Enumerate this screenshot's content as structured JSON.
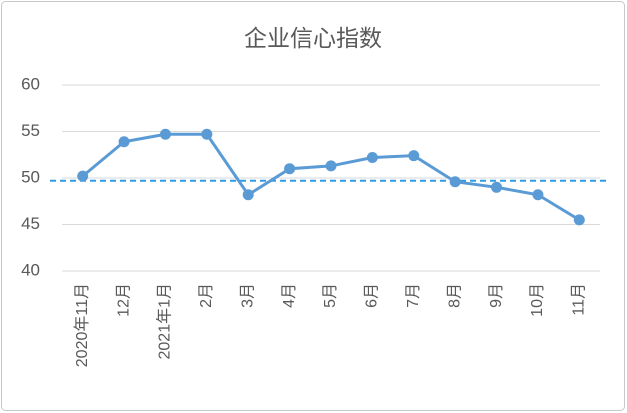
{
  "chart_data": {
    "type": "line",
    "title": "企业信心指数",
    "categories": [
      "2020年11月",
      "12月",
      "2021年1月",
      "2月",
      "3月",
      "4月",
      "5月",
      "6月",
      "7月",
      "8月",
      "9月",
      "10月",
      "11月"
    ],
    "series": [
      {
        "name": "企业信心指数",
        "color": "#5b9bd5",
        "values": [
          50.2,
          53.9,
          54.7,
          54.7,
          48.2,
          51.0,
          51.3,
          52.2,
          52.4,
          49.6,
          49.0,
          48.2,
          45.5
        ]
      }
    ],
    "reference_line": {
      "value": 49.7,
      "color": "#2e9be3"
    },
    "ylim": [
      40,
      60
    ],
    "yticks": [
      40,
      45,
      50,
      55,
      60
    ],
    "grid": true
  }
}
